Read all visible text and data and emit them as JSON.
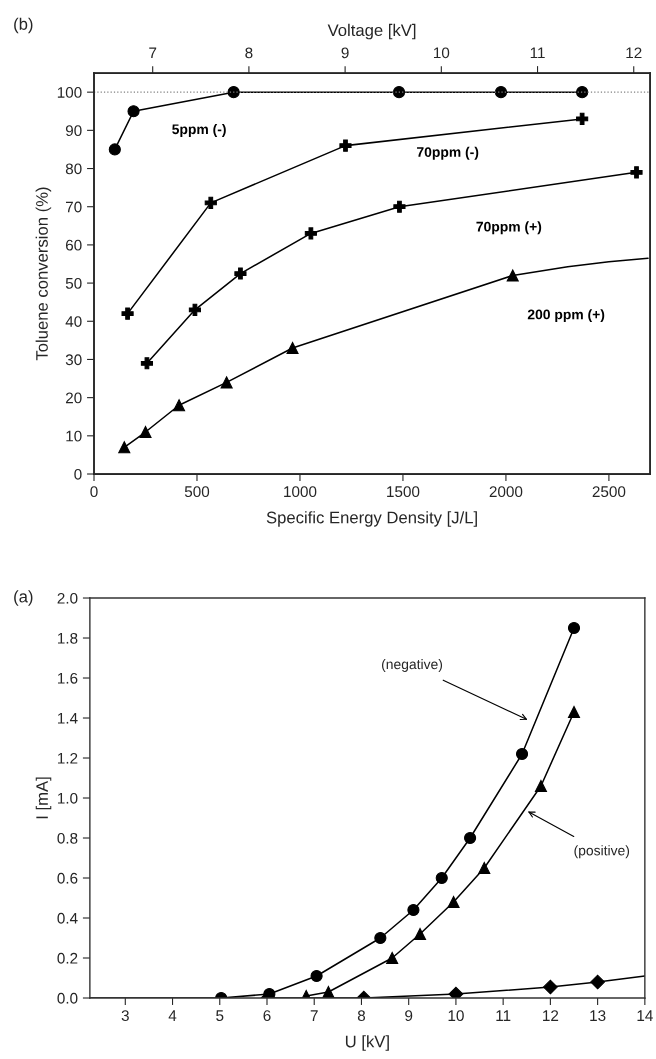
{
  "chart_data": [
    {
      "type": "line",
      "title": "(b)",
      "xlabel": "Specific Energy Density [J/L]",
      "ylabel": "Toluene conversion (%)",
      "x2label": "Voltage [kV]",
      "xlim": [
        0,
        2700
      ],
      "xticks": [
        0,
        500,
        1000,
        1500,
        2000,
        2500
      ],
      "ylim": [
        0,
        105
      ],
      "yticks": [
        0,
        10,
        20,
        30,
        40,
        50,
        60,
        70,
        80,
        90,
        100
      ],
      "x2lim": [
        6.39,
        12.17
      ],
      "x2ticks": [
        7,
        8,
        9,
        10,
        11,
        12
      ],
      "grid": false,
      "legend": false,
      "ref_lines": [
        {
          "axis": "y",
          "value": 100,
          "color": "#808080",
          "line_style": "dotted"
        }
      ],
      "series": [
        {
          "name": "5ppm (-)",
          "color": "#000000",
          "marker": "circle",
          "x": [
            101,
            192,
            678,
            1481,
            1976,
            2370
          ],
          "values": [
            85,
            95,
            100,
            100,
            100,
            100
          ]
        },
        {
          "name": "70ppm (-)",
          "color": "#000000",
          "marker": "cross",
          "x": [
            163,
            567,
            1221,
            2370
          ],
          "values": [
            42,
            71,
            86,
            93
          ]
        },
        {
          "name": "70ppm (+)",
          "color": "#000000",
          "marker": "cross",
          "x": [
            257,
            490,
            711,
            1053,
            1483,
            2634
          ],
          "values": [
            29,
            43,
            52.5,
            63,
            70,
            79
          ]
        },
        {
          "name": "200 ppm (+)",
          "color": "#000000",
          "marker": "triangle",
          "x": [
            147,
            250,
            413,
            644,
            964,
            2033
          ],
          "values": [
            7,
            11,
            18,
            24,
            33,
            52
          ]
        },
        {
          "color": "#000000",
          "marker": "none",
          "x": [
            2033,
            2300,
            2500,
            2690
          ],
          "values": [
            52,
            54.3,
            55.6,
            56.5
          ]
        }
      ]
    },
    {
      "type": "line",
      "title": "(a)",
      "xlabel": "U [kV]",
      "ylabel": "I [mA]",
      "xlim": [
        2.25,
        14
      ],
      "xticks": [
        3,
        4,
        5,
        6,
        7,
        8,
        9,
        10,
        11,
        12,
        13,
        14
      ],
      "ylim": [
        0,
        2.0
      ],
      "yticks": [
        {
          "value": 0,
          "label": "0.0"
        },
        0.2,
        0.4,
        0.6,
        0.8,
        {
          "value": 1,
          "label": "1.0"
        },
        1.2,
        1.4,
        1.6,
        1.8,
        {
          "value": 2,
          "label": "2.0"
        }
      ],
      "grid": false,
      "legend": false,
      "series": [
        {
          "color": "#000000",
          "marker": "none",
          "x": [
            2.25,
            5
          ],
          "values": [
            0,
            0
          ]
        },
        {
          "color": "#000000",
          "marker": "circle",
          "x": [
            5.03,
            6.05,
            7.05,
            8.4,
            9.1,
            9.7,
            10.3,
            11.4,
            12.5
          ],
          "values": [
            0,
            0.02,
            0.11,
            0.3,
            0.44,
            0.6,
            0.8,
            1.22,
            1.85
          ]
        },
        {
          "color": "#000000",
          "marker": "triangle",
          "x": [
            6.83,
            7.3,
            8.65,
            9.24,
            9.95,
            10.6,
            11.8,
            12.5
          ],
          "values": [
            0.01,
            0.03,
            0.2,
            0.32,
            0.48,
            0.65,
            1.06,
            1.43
          ]
        },
        {
          "color": "#000000",
          "marker": "diamond",
          "x": [
            6.02,
            8.05,
            10.0,
            12.0,
            13.0
          ],
          "values": [
            0,
            0,
            0.02,
            0.055,
            0.08
          ]
        },
        {
          "color": "#000000",
          "marker": "none",
          "x": [
            13.0,
            14.0
          ],
          "values": [
            0.08,
            0.11
          ]
        }
      ],
      "annotations": [
        {
          "text": "(negative)",
          "x": 11.57,
          "y": 1.385
        },
        {
          "text": "(positive)",
          "x": 11.47,
          "y": 0.94
        }
      ]
    }
  ]
}
